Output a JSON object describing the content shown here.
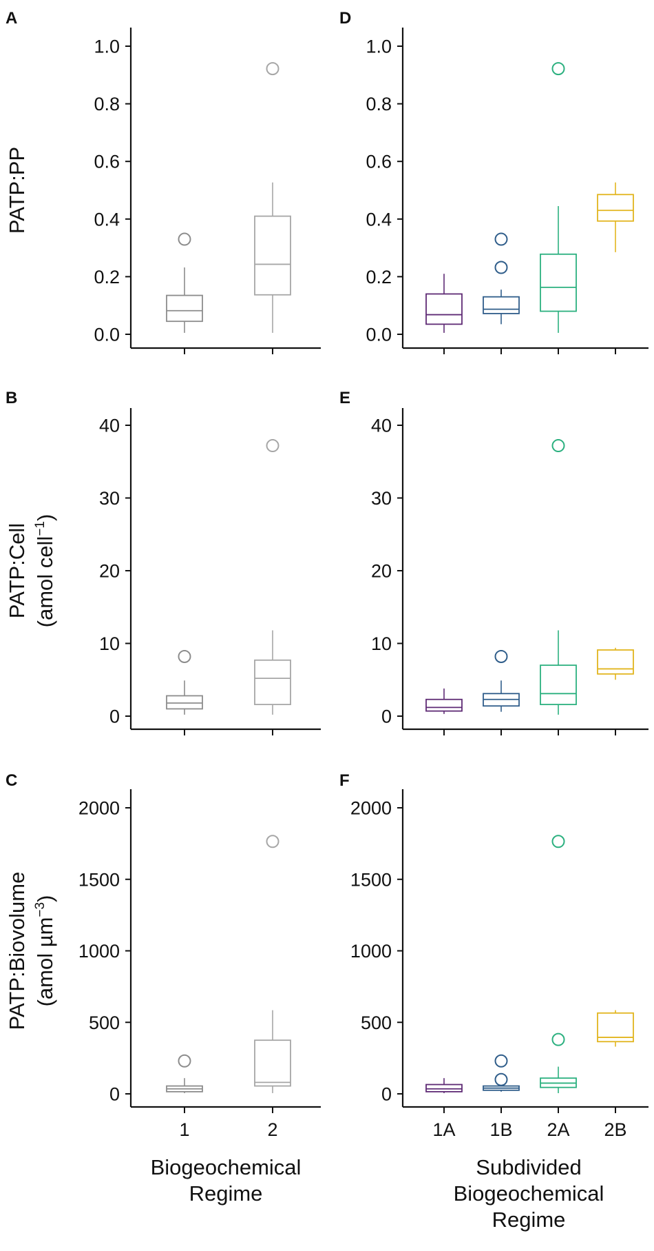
{
  "chart_data": [
    {
      "panel": "A",
      "type": "box",
      "ylabel": "PATP:PP",
      "xlabel": "",
      "ylim": [
        0,
        1.0
      ],
      "yticks": [
        0.0,
        0.2,
        0.4,
        0.6,
        0.8,
        1.0
      ],
      "ytick_labels": [
        "0.0",
        "0.2",
        "0.4",
        "0.6",
        "0.8",
        "1.0"
      ],
      "groups": [
        {
          "label": "1",
          "color": "#8c8c8c",
          "whisker_low": 0.005,
          "q1": 0.045,
          "median": 0.082,
          "q3": 0.135,
          "whisker_high": 0.232,
          "outliers": [
            0.33
          ]
        },
        {
          "label": "2",
          "color": "#a6a6a6",
          "whisker_low": 0.005,
          "q1": 0.137,
          "median": 0.243,
          "q3": 0.41,
          "whisker_high": 0.527,
          "outliers": [
            0.922
          ]
        }
      ]
    },
    {
      "panel": "D",
      "type": "box",
      "ylabel": "",
      "xlabel": "",
      "ylim": [
        0,
        1.0
      ],
      "yticks": [
        0.0,
        0.2,
        0.4,
        0.6,
        0.8,
        1.0
      ],
      "ytick_labels": [
        "0.0",
        "0.2",
        "0.4",
        "0.6",
        "0.8",
        "1.0"
      ],
      "groups": [
        {
          "label": "1A",
          "color": "#5e2a74",
          "whisker_low": 0.005,
          "q1": 0.035,
          "median": 0.068,
          "q3": 0.14,
          "whisker_high": 0.21,
          "outliers": []
        },
        {
          "label": "1B",
          "color": "#2f5d8a",
          "whisker_low": 0.035,
          "q1": 0.072,
          "median": 0.087,
          "q3": 0.13,
          "whisker_high": 0.155,
          "outliers": [
            0.232,
            0.33
          ]
        },
        {
          "label": "2A",
          "color": "#2bb07f",
          "whisker_low": 0.005,
          "q1": 0.08,
          "median": 0.163,
          "q3": 0.278,
          "whisker_high": 0.445,
          "outliers": [
            0.922
          ]
        },
        {
          "label": "2B",
          "color": "#e2b51e",
          "whisker_low": 0.285,
          "q1": 0.393,
          "median": 0.43,
          "q3": 0.485,
          "whisker_high": 0.527,
          "outliers": []
        }
      ]
    },
    {
      "panel": "B",
      "type": "box",
      "ylabel": "PATP:Cell",
      "ylabel_unit": "(amol cell",
      "ylabel_unit_sup": "−1",
      "ylabel_unit_close": ")",
      "xlabel": "",
      "ylim": [
        0,
        40
      ],
      "yticks": [
        0,
        10,
        20,
        30,
        40
      ],
      "ytick_labels": [
        "0",
        "10",
        "20",
        "30",
        "40"
      ],
      "groups": [
        {
          "label": "1",
          "color": "#8c8c8c",
          "whisker_low": 0.2,
          "q1": 1.0,
          "median": 1.8,
          "q3": 2.8,
          "whisker_high": 4.9,
          "outliers": [
            8.2
          ]
        },
        {
          "label": "2",
          "color": "#a6a6a6",
          "whisker_low": 0.2,
          "q1": 1.6,
          "median": 5.2,
          "q3": 7.7,
          "whisker_high": 11.8,
          "outliers": [
            37.2
          ]
        }
      ]
    },
    {
      "panel": "E",
      "type": "box",
      "ylabel": "",
      "xlabel": "",
      "ylim": [
        0,
        40
      ],
      "yticks": [
        0,
        10,
        20,
        30,
        40
      ],
      "ytick_labels": [
        "0",
        "10",
        "20",
        "30",
        "40"
      ],
      "groups": [
        {
          "label": "1A",
          "color": "#5e2a74",
          "whisker_low": 0.3,
          "q1": 0.7,
          "median": 1.2,
          "q3": 2.3,
          "whisker_high": 3.8,
          "outliers": []
        },
        {
          "label": "1B",
          "color": "#2f5d8a",
          "whisker_low": 0.6,
          "q1": 1.4,
          "median": 2.3,
          "q3": 3.1,
          "whisker_high": 4.9,
          "outliers": [
            8.2
          ]
        },
        {
          "label": "2A",
          "color": "#2bb07f",
          "whisker_low": 0.2,
          "q1": 1.6,
          "median": 3.1,
          "q3": 7.0,
          "whisker_high": 11.8,
          "outliers": [
            37.2
          ]
        },
        {
          "label": "2B",
          "color": "#e2b51e",
          "whisker_low": 5.0,
          "q1": 5.8,
          "median": 6.5,
          "q3": 9.1,
          "whisker_high": 9.4,
          "outliers": []
        }
      ]
    },
    {
      "panel": "C",
      "type": "box",
      "ylabel": "PATP:Biovolume",
      "ylabel_unit": "(amol µm",
      "ylabel_unit_sup": "−3",
      "ylabel_unit_close": ")",
      "xlabel": "Biogeochemical Regime",
      "ylim": [
        0,
        2000
      ],
      "yticks": [
        0,
        500,
        1000,
        1500,
        2000
      ],
      "ytick_labels": [
        "0",
        "500",
        "1000",
        "1500",
        "2000"
      ],
      "groups": [
        {
          "label": "1",
          "color": "#8c8c8c",
          "whisker_low": 5,
          "q1": 15,
          "median": 35,
          "q3": 55,
          "whisker_high": 110,
          "outliers": [
            230
          ]
        },
        {
          "label": "2",
          "color": "#a6a6a6",
          "whisker_low": 5,
          "q1": 55,
          "median": 80,
          "q3": 375,
          "whisker_high": 585,
          "outliers": [
            1765
          ]
        }
      ]
    },
    {
      "panel": "F",
      "type": "box",
      "ylabel": "",
      "xlabel": "Subdivided Biogeochemical Regime",
      "ylim": [
        0,
        2000
      ],
      "yticks": [
        0,
        500,
        1000,
        1500,
        2000
      ],
      "ytick_labels": [
        "0",
        "500",
        "1000",
        "1500",
        "2000"
      ],
      "groups": [
        {
          "label": "1A",
          "color": "#5e2a74",
          "whisker_low": 5,
          "q1": 15,
          "median": 35,
          "q3": 65,
          "whisker_high": 110,
          "outliers": []
        },
        {
          "label": "1B",
          "color": "#2f5d8a",
          "whisker_low": 15,
          "q1": 25,
          "median": 40,
          "q3": 55,
          "whisker_high": 60,
          "outliers": [
            100,
            230
          ]
        },
        {
          "label": "2A",
          "color": "#2bb07f",
          "whisker_low": 5,
          "q1": 45,
          "median": 75,
          "q3": 110,
          "whisker_high": 190,
          "outliers": [
            380,
            1765
          ]
        },
        {
          "label": "2B",
          "color": "#e2b51e",
          "whisker_low": 330,
          "q1": 365,
          "median": 395,
          "q3": 565,
          "whisker_high": 585,
          "outliers": []
        }
      ]
    }
  ],
  "xlabels": {
    "left": [
      "Biogeochemical",
      "Regime"
    ],
    "right": [
      "Subdivided",
      "Biogeochemical",
      "Regime"
    ]
  }
}
